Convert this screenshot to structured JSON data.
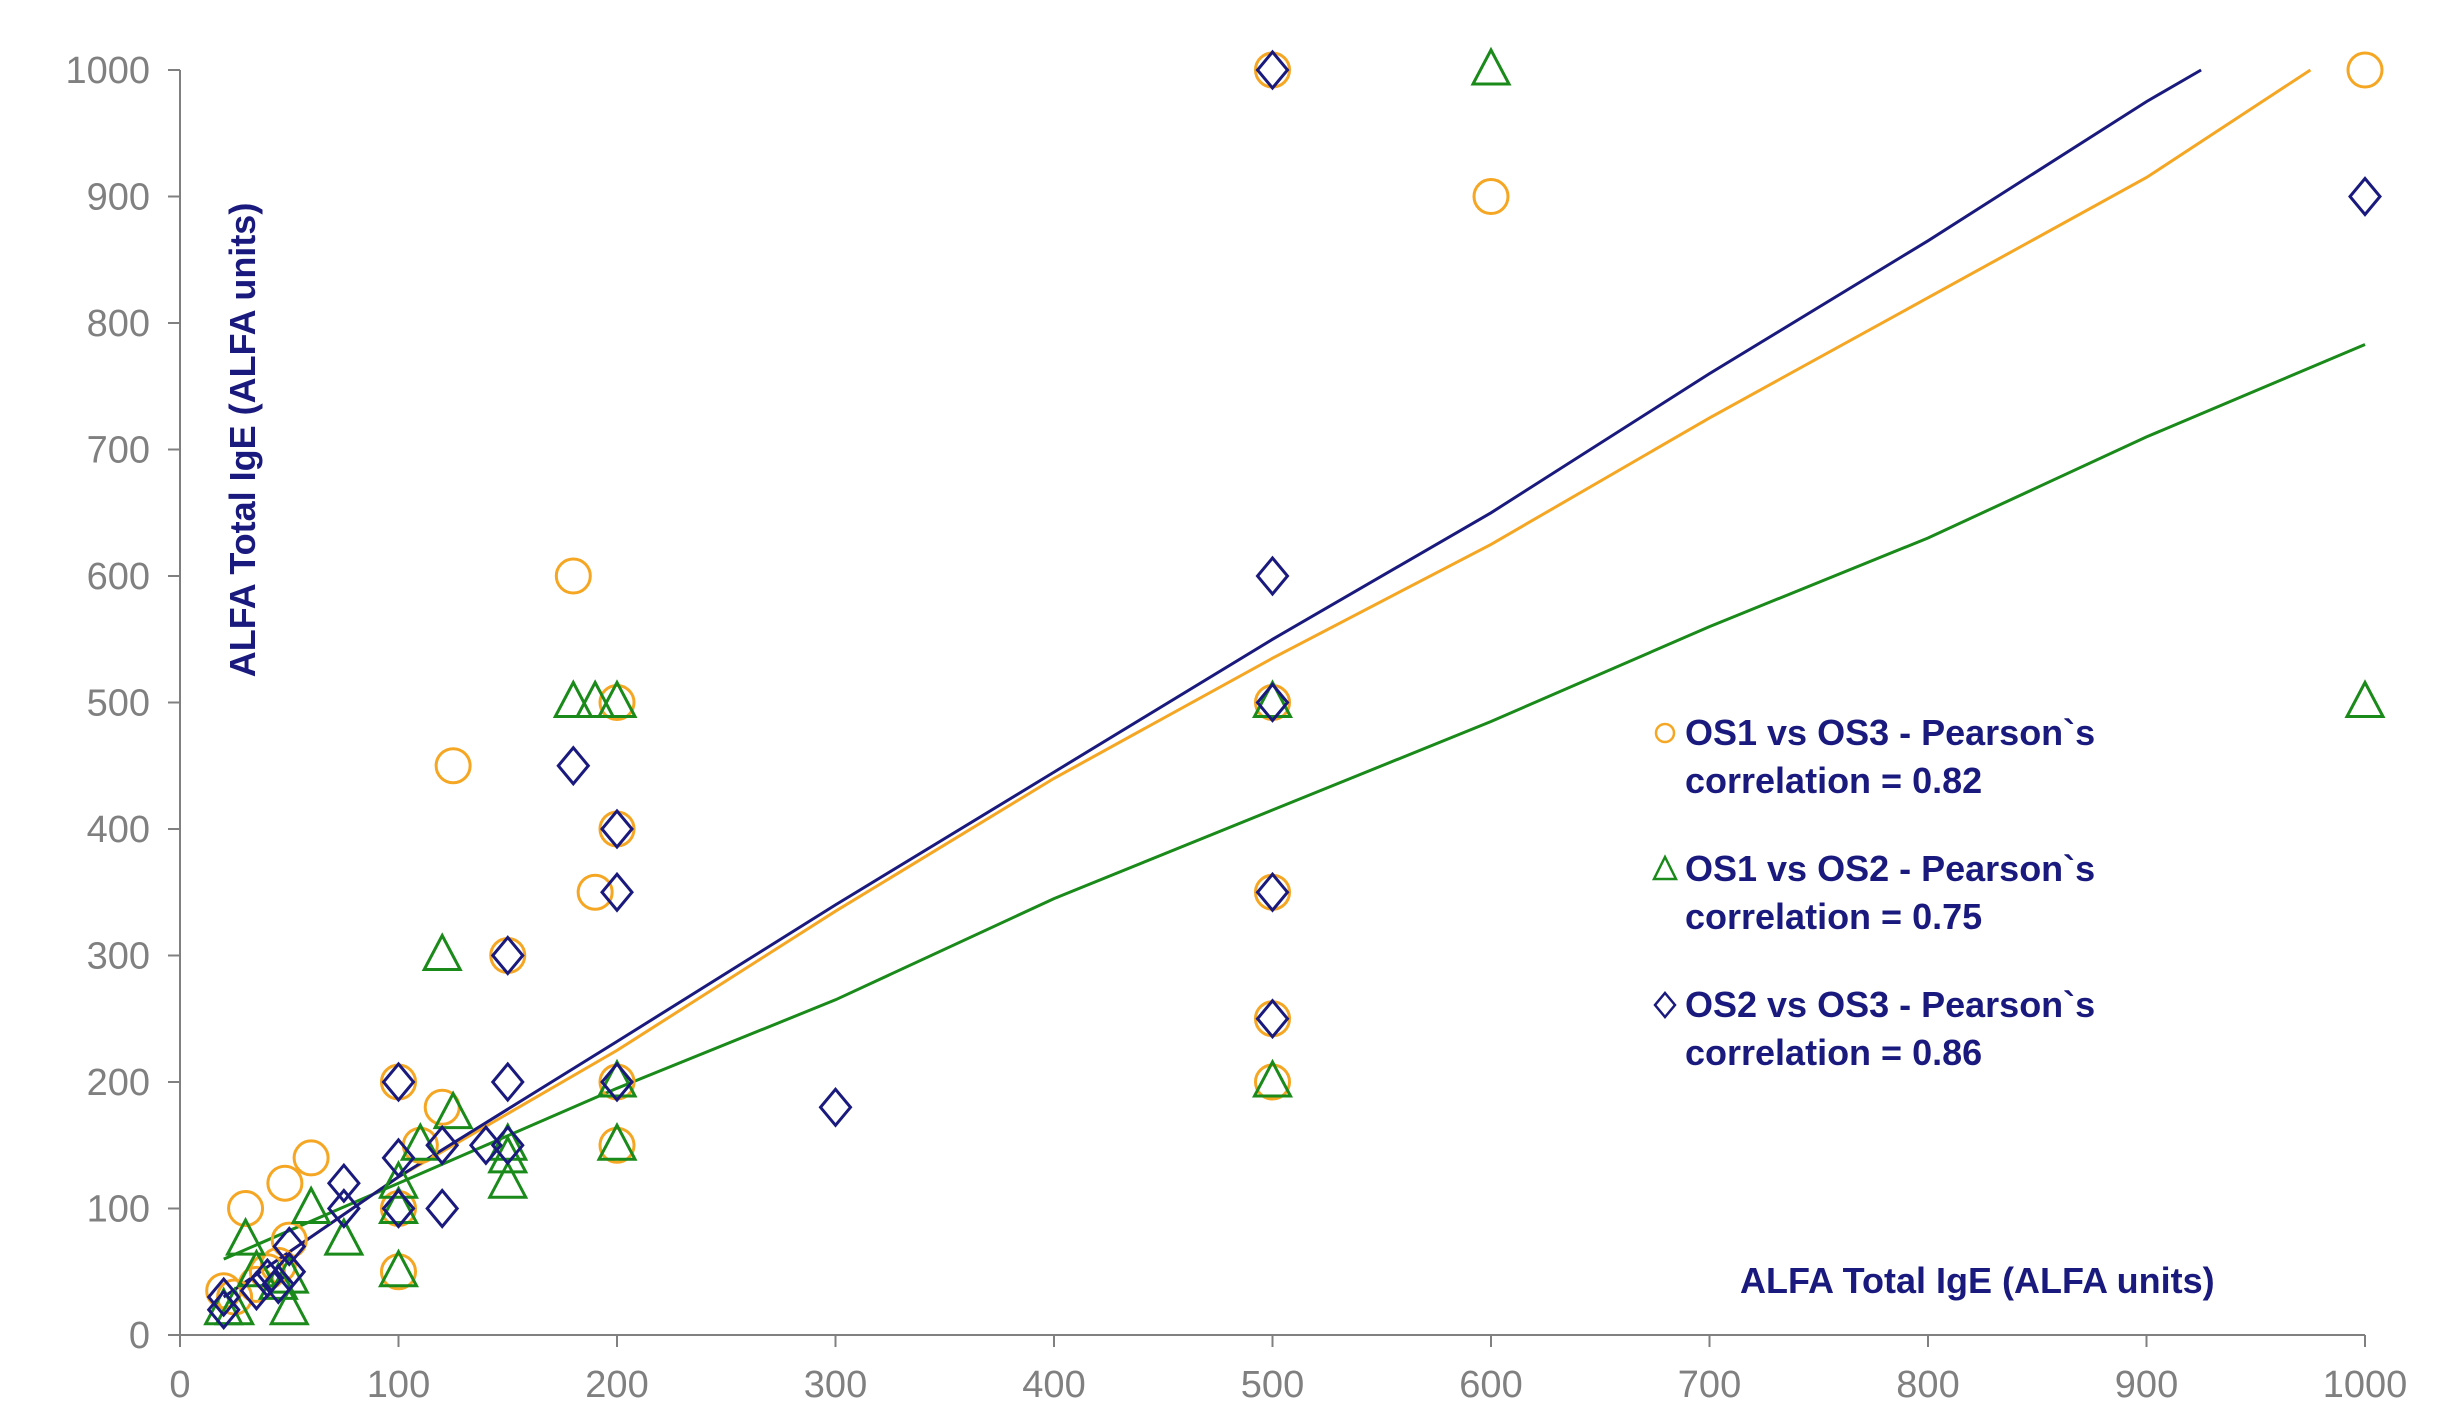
{
  "chart_data": {
    "type": "scatter",
    "xlabel": "ALFA Total IgE (ALFA units)",
    "ylabel": "ALFA Total IgE (ALFA units)",
    "xlim": [
      0,
      1000
    ],
    "ylim": [
      0,
      1000
    ],
    "x_ticks": [
      "0",
      "100",
      "200",
      "300",
      "400",
      "500",
      "600",
      "700",
      "800",
      "900",
      "1000"
    ],
    "y_ticks": [
      "0",
      "100",
      "200",
      "300",
      "400",
      "500",
      "600",
      "700",
      "800",
      "900",
      "1000"
    ],
    "grid": false,
    "legend_position": "right",
    "series": [
      {
        "name_line1": "OS1 vs OS3 - Pearson`s",
        "name_line2": "correlation = 0.82",
        "marker": "circle",
        "color": "#f5a623",
        "points": [
          [
            20,
            35
          ],
          [
            25,
            30
          ],
          [
            30,
            100
          ],
          [
            35,
            40
          ],
          [
            40,
            50
          ],
          [
            45,
            55
          ],
          [
            48,
            120
          ],
          [
            50,
            75
          ],
          [
            60,
            140
          ],
          [
            100,
            200
          ],
          [
            100,
            50
          ],
          [
            100,
            100
          ],
          [
            110,
            150
          ],
          [
            120,
            180
          ],
          [
            125,
            450
          ],
          [
            150,
            300
          ],
          [
            180,
            600
          ],
          [
            190,
            350
          ],
          [
            200,
            500
          ],
          [
            200,
            400
          ],
          [
            200,
            200
          ],
          [
            200,
            150
          ],
          [
            500,
            1000
          ],
          [
            500,
            500
          ],
          [
            500,
            350
          ],
          [
            500,
            250
          ],
          [
            500,
            200
          ],
          [
            600,
            900
          ],
          [
            1000,
            1000
          ]
        ],
        "trend": [
          [
            20,
            30
          ],
          [
            100,
            125
          ],
          [
            200,
            225
          ],
          [
            300,
            335
          ],
          [
            400,
            440
          ],
          [
            500,
            535
          ],
          [
            600,
            625
          ],
          [
            700,
            725
          ],
          [
            800,
            820
          ],
          [
            900,
            915
          ],
          [
            975,
            1000
          ]
        ]
      },
      {
        "name_line1": "OS1 vs OS2 - Pearson`s",
        "name_line2": "correlation = 0.75",
        "marker": "triangle",
        "color": "#1a8a1a",
        "points": [
          [
            20,
            20
          ],
          [
            25,
            20
          ],
          [
            30,
            75
          ],
          [
            35,
            50
          ],
          [
            45,
            40
          ],
          [
            50,
            20
          ],
          [
            50,
            45
          ],
          [
            60,
            100
          ],
          [
            75,
            75
          ],
          [
            100,
            100
          ],
          [
            100,
            50
          ],
          [
            100,
            120
          ],
          [
            110,
            150
          ],
          [
            120,
            300
          ],
          [
            125,
            175
          ],
          [
            150,
            120
          ],
          [
            150,
            140
          ],
          [
            150,
            150
          ],
          [
            180,
            500
          ],
          [
            190,
            500
          ],
          [
            200,
            500
          ],
          [
            200,
            200
          ],
          [
            200,
            150
          ],
          [
            500,
            500
          ],
          [
            500,
            200
          ],
          [
            600,
            1000
          ],
          [
            1000,
            500
          ]
        ],
        "trend": [
          [
            20,
            60
          ],
          [
            100,
            120
          ],
          [
            200,
            195
          ],
          [
            300,
            265
          ],
          [
            400,
            345
          ],
          [
            500,
            415
          ],
          [
            600,
            485
          ],
          [
            700,
            560
          ],
          [
            800,
            630
          ],
          [
            900,
            710
          ],
          [
            1000,
            783
          ]
        ]
      },
      {
        "name_line1": "OS2 vs OS3 - Pearson`s",
        "name_line2": "correlation = 0.86",
        "marker": "diamond",
        "color": "#1a1a7e",
        "points": [
          [
            20,
            20
          ],
          [
            20,
            30
          ],
          [
            35,
            35
          ],
          [
            40,
            45
          ],
          [
            45,
            40
          ],
          [
            50,
            50
          ],
          [
            50,
            70
          ],
          [
            75,
            120
          ],
          [
            75,
            100
          ],
          [
            100,
            200
          ],
          [
            100,
            140
          ],
          [
            100,
            100
          ],
          [
            120,
            100
          ],
          [
            120,
            150
          ],
          [
            140,
            150
          ],
          [
            150,
            300
          ],
          [
            150,
            200
          ],
          [
            150,
            150
          ],
          [
            180,
            450
          ],
          [
            200,
            400
          ],
          [
            200,
            350
          ],
          [
            200,
            200
          ],
          [
            300,
            180
          ],
          [
            500,
            1000
          ],
          [
            500,
            600
          ],
          [
            500,
            500
          ],
          [
            500,
            350
          ],
          [
            500,
            250
          ],
          [
            1000,
            900
          ]
        ],
        "trend": [
          [
            20,
            30
          ],
          [
            100,
            125
          ],
          [
            200,
            232
          ],
          [
            300,
            340
          ],
          [
            400,
            445
          ],
          [
            500,
            550
          ],
          [
            600,
            650
          ],
          [
            700,
            760
          ],
          [
            800,
            865
          ],
          [
            900,
            975
          ],
          [
            925,
            1000
          ]
        ]
      }
    ]
  }
}
